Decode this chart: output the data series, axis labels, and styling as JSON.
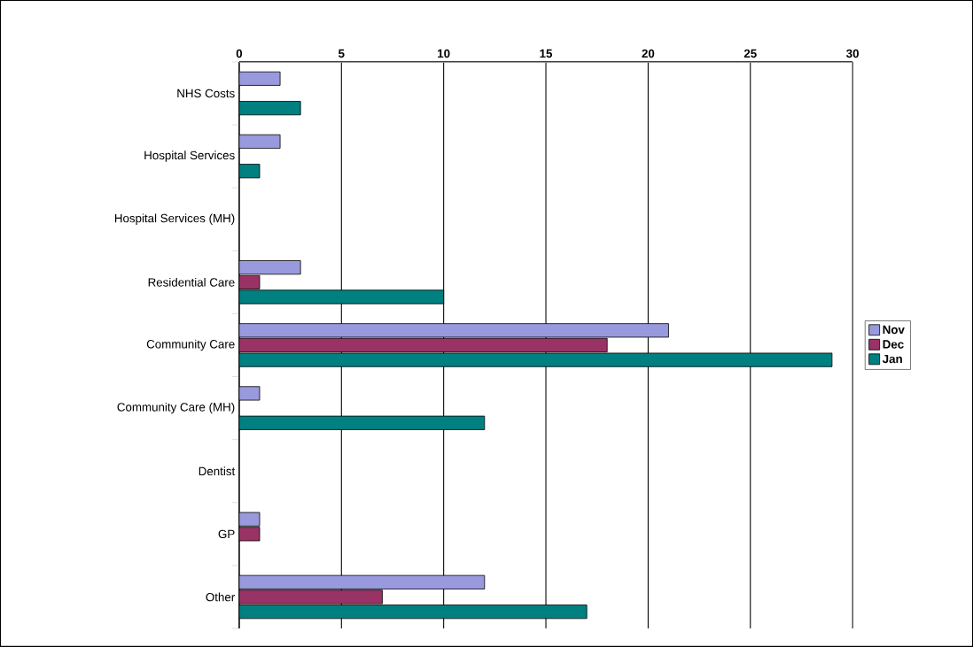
{
  "chart_data": {
    "type": "bar",
    "orientation": "horizontal",
    "categories": [
      "NHS Costs",
      "Hospital Services",
      "Hospital Services (MH)",
      "Residential Care",
      "Community Care",
      "Community Care (MH)",
      "Dentist",
      "GP",
      "Other"
    ],
    "series": [
      {
        "name": "Nov",
        "color": "#9999dd",
        "values": [
          2,
          2,
          0,
          3,
          21,
          1,
          0,
          1,
          12
        ]
      },
      {
        "name": "Dec",
        "color": "#993366",
        "values": [
          0,
          0,
          0,
          1,
          18,
          0,
          0,
          1,
          7
        ]
      },
      {
        "name": "Jan",
        "color": "#008080",
        "values": [
          3,
          1,
          0,
          10,
          29,
          12,
          0,
          0,
          17
        ]
      }
    ],
    "xlim": [
      0,
      30
    ],
    "xticks": [
      0,
      5,
      10,
      15,
      20,
      25,
      30
    ],
    "grid": "x",
    "legend": "right"
  }
}
